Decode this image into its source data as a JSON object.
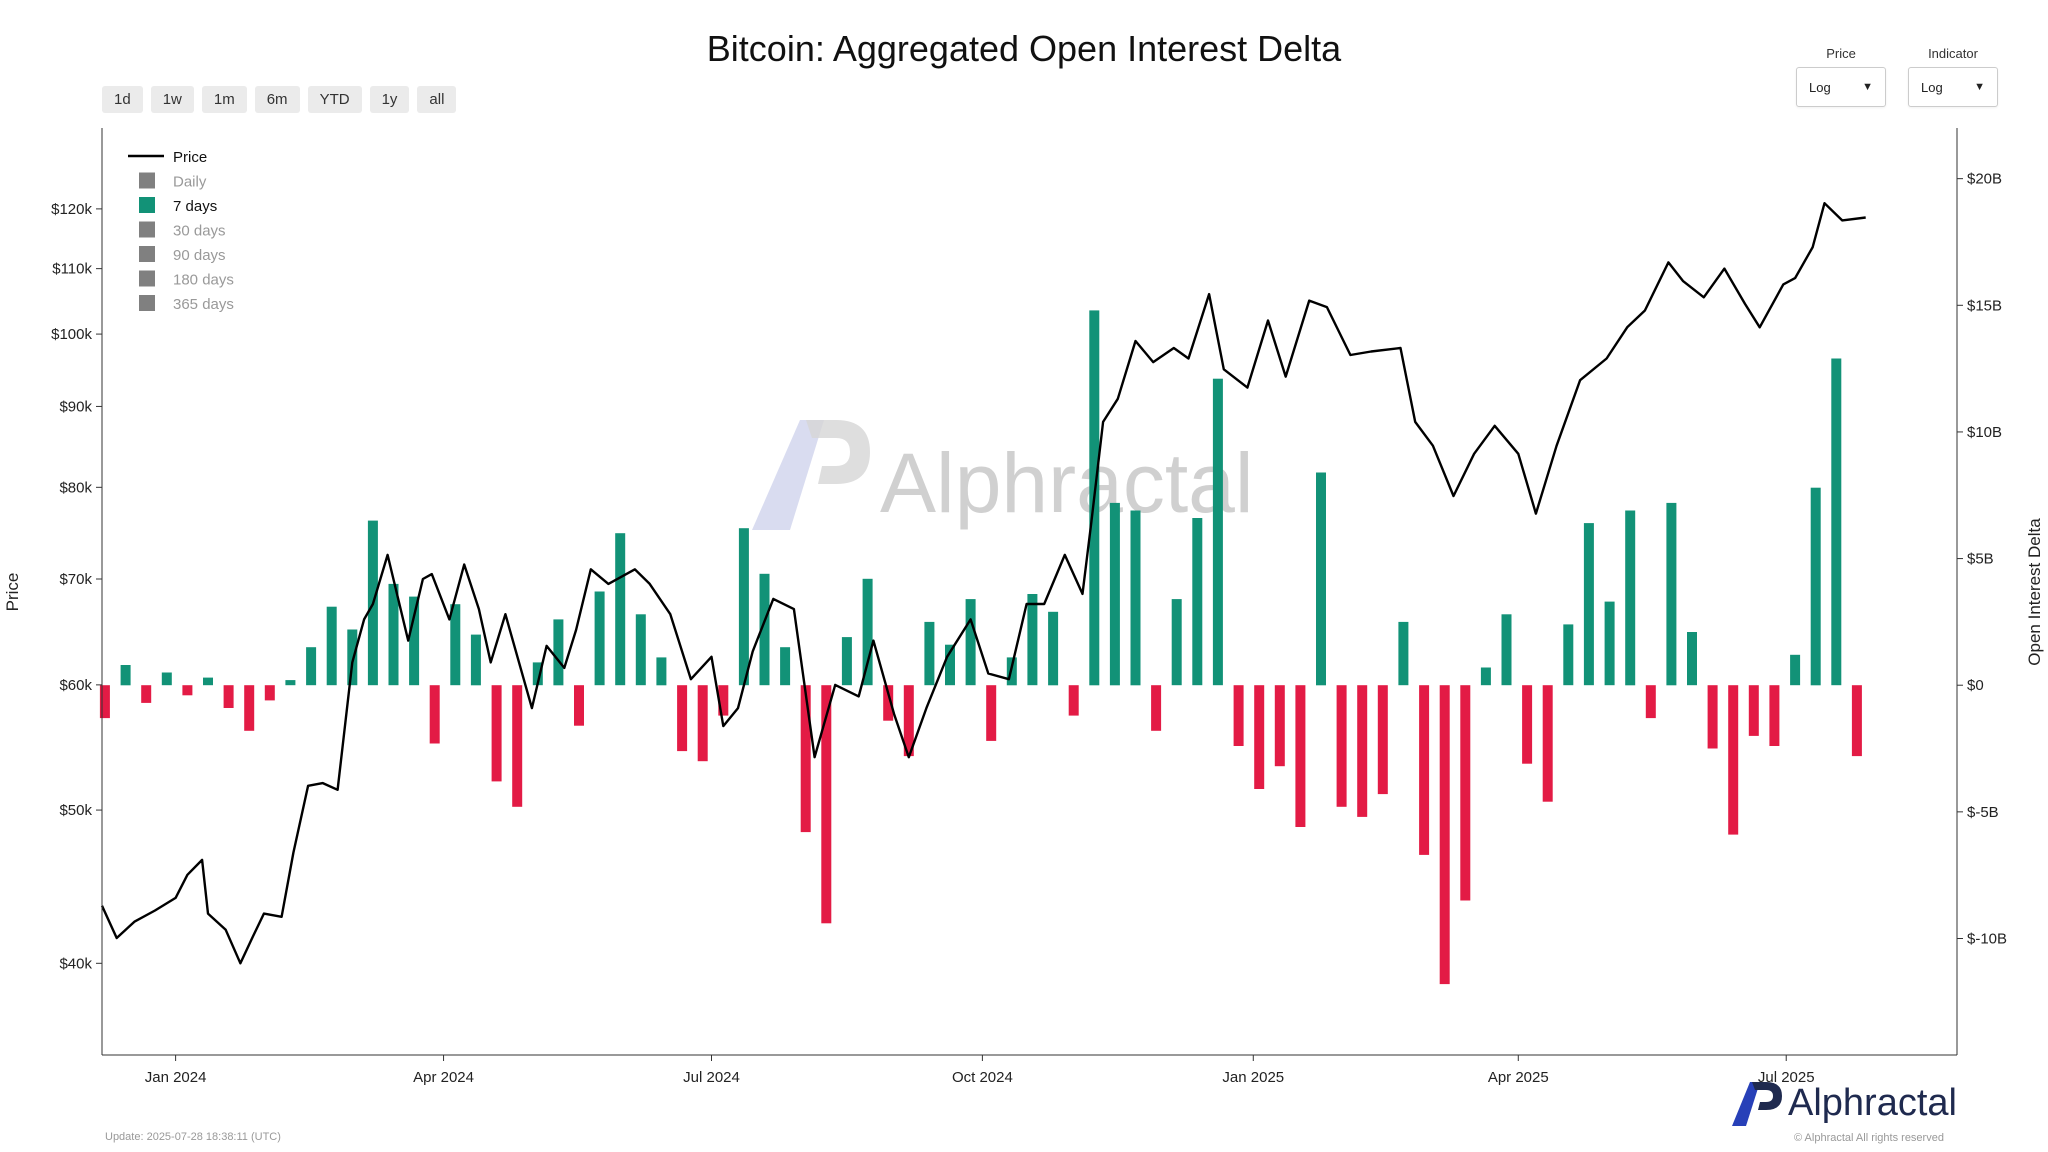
{
  "title": "Bitcoin: Aggregated Open Interest Delta",
  "range_buttons": [
    "1d",
    "1w",
    "1m",
    "6m",
    "YTD",
    "1y",
    "all"
  ],
  "controls": {
    "price": {
      "label": "Price",
      "value": "Log"
    },
    "indicator": {
      "label": "Indicator",
      "value": "Log"
    }
  },
  "footer": {
    "update": "Update: 2025-07-28 18:38:11 (UTC)",
    "logo": "Alphractal",
    "copyright": "© Alphractal All rights reserved"
  },
  "watermark": "Alphractal",
  "colors": {
    "positive": "#129277",
    "negative": "#e31b45",
    "price": "#000000",
    "inactive": "#808080"
  },
  "chart_data": {
    "type": "bar",
    "title": "Bitcoin: Aggregated Open Interest Delta",
    "ylabel": "Price",
    "y2label": "Open Interest Delta",
    "y_scale": "log",
    "ylim": [
      35000,
      135000
    ],
    "y2lim": [
      -14.6,
      22
    ],
    "x_range": [
      "2023-12-07",
      "2025-08-28"
    ],
    "x_ticks": [
      {
        "date": "2024-01-01",
        "label": "Jan 2024"
      },
      {
        "date": "2024-04-01",
        "label": "Apr 2024"
      },
      {
        "date": "2024-07-01",
        "label": "Jul 2024"
      },
      {
        "date": "2024-10-01",
        "label": "Oct 2024"
      },
      {
        "date": "2025-01-01",
        "label": "Jan 2025"
      },
      {
        "date": "2025-04-01",
        "label": "Apr 2025"
      },
      {
        "date": "2025-07-01",
        "label": "Jul 2025"
      }
    ],
    "y_ticks": [
      {
        "value": 40000,
        "label": "$40k"
      },
      {
        "value": 50000,
        "label": "$50k"
      },
      {
        "value": 60000,
        "label": "$60k"
      },
      {
        "value": 70000,
        "label": "$70k"
      },
      {
        "value": 80000,
        "label": "$80k"
      },
      {
        "value": 90000,
        "label": "$90k"
      },
      {
        "value": 100000,
        "label": "$100k"
      },
      {
        "value": 110000,
        "label": "$110k"
      },
      {
        "value": 120000,
        "label": "$120k"
      }
    ],
    "y2_ticks": [
      {
        "value": 20,
        "label": "$20B"
      },
      {
        "value": 15,
        "label": "$15B"
      },
      {
        "value": 10,
        "label": "$10B"
      },
      {
        "value": 5,
        "label": "$5B"
      },
      {
        "value": 0,
        "label": "$0"
      },
      {
        "value": -5,
        "label": "$-5B"
      },
      {
        "value": -10,
        "label": "$-10B"
      }
    ],
    "legend": {
      "position": "top-left",
      "items": [
        {
          "label": "Price",
          "kind": "line",
          "active": true
        },
        {
          "label": "Daily",
          "kind": "box",
          "active": false
        },
        {
          "label": "7 days",
          "kind": "box",
          "active": true
        },
        {
          "label": "30 days",
          "kind": "box",
          "active": false
        },
        {
          "label": "90 days",
          "kind": "box",
          "active": false
        },
        {
          "label": "180 days",
          "kind": "box",
          "active": false
        },
        {
          "label": "365 days",
          "kind": "box",
          "active": false
        }
      ]
    },
    "price_series": {
      "name": "Price",
      "points": [
        [
          "2023-12-07",
          43500
        ],
        [
          "2023-12-12",
          41500
        ],
        [
          "2023-12-18",
          42500
        ],
        [
          "2023-12-25",
          43200
        ],
        [
          "2024-01-01",
          44000
        ],
        [
          "2024-01-05",
          45500
        ],
        [
          "2024-01-10",
          46500
        ],
        [
          "2024-01-12",
          43000
        ],
        [
          "2024-01-18",
          42000
        ],
        [
          "2024-01-23",
          40000
        ],
        [
          "2024-01-27",
          41500
        ],
        [
          "2024-01-31",
          43000
        ],
        [
          "2024-02-06",
          42800
        ],
        [
          "2024-02-10",
          47000
        ],
        [
          "2024-02-15",
          51800
        ],
        [
          "2024-02-20",
          52000
        ],
        [
          "2024-02-25",
          51500
        ],
        [
          "2024-03-01",
          62000
        ],
        [
          "2024-03-05",
          66000
        ],
        [
          "2024-03-08",
          67500
        ],
        [
          "2024-03-13",
          72500
        ],
        [
          "2024-03-20",
          64000
        ],
        [
          "2024-03-25",
          70000
        ],
        [
          "2024-03-28",
          70500
        ],
        [
          "2024-04-03",
          66000
        ],
        [
          "2024-04-08",
          71500
        ],
        [
          "2024-04-13",
          67000
        ],
        [
          "2024-04-17",
          62000
        ],
        [
          "2024-04-22",
          66500
        ],
        [
          "2024-05-01",
          58000
        ],
        [
          "2024-05-06",
          63500
        ],
        [
          "2024-05-12",
          61500
        ],
        [
          "2024-05-16",
          65000
        ],
        [
          "2024-05-21",
          71000
        ],
        [
          "2024-05-27",
          69500
        ],
        [
          "2024-06-05",
          71000
        ],
        [
          "2024-06-10",
          69500
        ],
        [
          "2024-06-17",
          66500
        ],
        [
          "2024-06-24",
          60500
        ],
        [
          "2024-07-01",
          62500
        ],
        [
          "2024-07-05",
          56500
        ],
        [
          "2024-07-10",
          58000
        ],
        [
          "2024-07-15",
          63000
        ],
        [
          "2024-07-22",
          68000
        ],
        [
          "2024-07-29",
          67000
        ],
        [
          "2024-08-05",
          54000
        ],
        [
          "2024-08-12",
          60000
        ],
        [
          "2024-08-20",
          59000
        ],
        [
          "2024-08-25",
          64000
        ],
        [
          "2024-09-01",
          57500
        ],
        [
          "2024-09-06",
          54000
        ],
        [
          "2024-09-12",
          58000
        ],
        [
          "2024-09-19",
          62500
        ],
        [
          "2024-09-27",
          66000
        ],
        [
          "2024-10-03",
          61000
        ],
        [
          "2024-10-10",
          60500
        ],
        [
          "2024-10-16",
          67500
        ],
        [
          "2024-10-22",
          67500
        ],
        [
          "2024-10-29",
          72500
        ],
        [
          "2024-11-04",
          68500
        ],
        [
          "2024-11-07",
          76000
        ],
        [
          "2024-11-11",
          88000
        ],
        [
          "2024-11-16",
          91000
        ],
        [
          "2024-11-22",
          99000
        ],
        [
          "2024-11-28",
          96000
        ],
        [
          "2024-12-05",
          98000
        ],
        [
          "2024-12-10",
          96500
        ],
        [
          "2024-12-17",
          106000
        ],
        [
          "2024-12-22",
          95000
        ],
        [
          "2024-12-30",
          92500
        ],
        [
          "2025-01-06",
          102000
        ],
        [
          "2025-01-12",
          94000
        ],
        [
          "2025-01-20",
          105000
        ],
        [
          "2025-01-26",
          104000
        ],
        [
          "2025-02-03",
          97000
        ],
        [
          "2025-02-10",
          97500
        ],
        [
          "2025-02-20",
          98000
        ],
        [
          "2025-02-25",
          88000
        ],
        [
          "2025-03-03",
          85000
        ],
        [
          "2025-03-10",
          79000
        ],
        [
          "2025-03-17",
          84000
        ],
        [
          "2025-03-24",
          87500
        ],
        [
          "2025-04-01",
          84000
        ],
        [
          "2025-04-07",
          77000
        ],
        [
          "2025-04-14",
          85000
        ],
        [
          "2025-04-22",
          93500
        ],
        [
          "2025-05-01",
          96500
        ],
        [
          "2025-05-08",
          101000
        ],
        [
          "2025-05-14",
          103500
        ],
        [
          "2025-05-22",
          111000
        ],
        [
          "2025-05-27",
          108000
        ],
        [
          "2025-06-03",
          105500
        ],
        [
          "2025-06-10",
          110000
        ],
        [
          "2025-06-17",
          104500
        ],
        [
          "2025-06-22",
          101000
        ],
        [
          "2025-06-30",
          107500
        ],
        [
          "2025-07-04",
          108500
        ],
        [
          "2025-07-10",
          113500
        ],
        [
          "2025-07-14",
          121000
        ],
        [
          "2025-07-20",
          118000
        ],
        [
          "2025-07-28",
          118500
        ]
      ]
    },
    "delta_series": {
      "name": "7 days",
      "unit": "B",
      "points": [
        [
          "2023-12-08",
          -1.3
        ],
        [
          "2023-12-15",
          0.8
        ],
        [
          "2023-12-22",
          -0.7
        ],
        [
          "2023-12-29",
          0.5
        ],
        [
          "2024-01-05",
          -0.4
        ],
        [
          "2024-01-12",
          0.3
        ],
        [
          "2024-01-19",
          -0.9
        ],
        [
          "2024-01-26",
          -1.8
        ],
        [
          "2024-02-02",
          -0.6
        ],
        [
          "2024-02-09",
          0.2
        ],
        [
          "2024-02-16",
          1.5
        ],
        [
          "2024-02-23",
          3.1
        ],
        [
          "2024-03-01",
          2.2
        ],
        [
          "2024-03-08",
          6.5
        ],
        [
          "2024-03-15",
          4.0
        ],
        [
          "2024-03-22",
          3.5
        ],
        [
          "2024-03-29",
          -2.3
        ],
        [
          "2024-04-05",
          3.2
        ],
        [
          "2024-04-12",
          2.0
        ],
        [
          "2024-04-19",
          -3.8
        ],
        [
          "2024-04-26",
          -4.8
        ],
        [
          "2024-05-03",
          0.9
        ],
        [
          "2024-05-10",
          2.6
        ],
        [
          "2024-05-17",
          -1.6
        ],
        [
          "2024-05-24",
          3.7
        ],
        [
          "2024-05-31",
          6.0
        ],
        [
          "2024-06-07",
          2.8
        ],
        [
          "2024-06-14",
          1.1
        ],
        [
          "2024-06-21",
          -2.6
        ],
        [
          "2024-06-28",
          -3.0
        ],
        [
          "2024-07-05",
          -1.2
        ],
        [
          "2024-07-12",
          6.2
        ],
        [
          "2024-07-19",
          4.4
        ],
        [
          "2024-07-26",
          1.5
        ],
        [
          "2024-08-02",
          -5.8
        ],
        [
          "2024-08-09",
          -9.4
        ],
        [
          "2024-08-16",
          1.9
        ],
        [
          "2024-08-23",
          4.2
        ],
        [
          "2024-08-30",
          -1.4
        ],
        [
          "2024-09-06",
          -2.8
        ],
        [
          "2024-09-13",
          2.5
        ],
        [
          "2024-09-20",
          1.6
        ],
        [
          "2024-09-27",
          3.4
        ],
        [
          "2024-10-04",
          -2.2
        ],
        [
          "2024-10-11",
          1.1
        ],
        [
          "2024-10-18",
          3.6
        ],
        [
          "2024-10-25",
          2.9
        ],
        [
          "2024-11-01",
          -1.2
        ],
        [
          "2024-11-08",
          14.8
        ],
        [
          "2024-11-15",
          7.2
        ],
        [
          "2024-11-22",
          6.9
        ],
        [
          "2024-11-29",
          -1.8
        ],
        [
          "2024-12-06",
          3.4
        ],
        [
          "2024-12-13",
          6.6
        ],
        [
          "2024-12-20",
          12.1
        ],
        [
          "2024-12-27",
          -2.4
        ],
        [
          "2025-01-03",
          -4.1
        ],
        [
          "2025-01-10",
          -3.2
        ],
        [
          "2025-01-17",
          -5.6
        ],
        [
          "2025-01-24",
          8.4
        ],
        [
          "2025-01-31",
          -4.8
        ],
        [
          "2025-02-07",
          -5.2
        ],
        [
          "2025-02-14",
          -4.3
        ],
        [
          "2025-02-21",
          2.5
        ],
        [
          "2025-02-28",
          -6.7
        ],
        [
          "2025-03-07",
          -11.8
        ],
        [
          "2025-03-14",
          -8.5
        ],
        [
          "2025-03-21",
          0.7
        ],
        [
          "2025-03-28",
          2.8
        ],
        [
          "2025-04-04",
          -3.1
        ],
        [
          "2025-04-11",
          -4.6
        ],
        [
          "2025-04-18",
          2.4
        ],
        [
          "2025-04-25",
          6.4
        ],
        [
          "2025-05-02",
          3.3
        ],
        [
          "2025-05-09",
          6.9
        ],
        [
          "2025-05-16",
          -1.3
        ],
        [
          "2025-05-23",
          7.2
        ],
        [
          "2025-05-30",
          2.1
        ],
        [
          "2025-06-06",
          -2.5
        ],
        [
          "2025-06-13",
          -5.9
        ],
        [
          "2025-06-20",
          -2.0
        ],
        [
          "2025-06-27",
          -2.4
        ],
        [
          "2025-07-04",
          1.2
        ],
        [
          "2025-07-11",
          7.8
        ],
        [
          "2025-07-18",
          12.9
        ],
        [
          "2025-07-25",
          -2.8
        ]
      ]
    }
  }
}
